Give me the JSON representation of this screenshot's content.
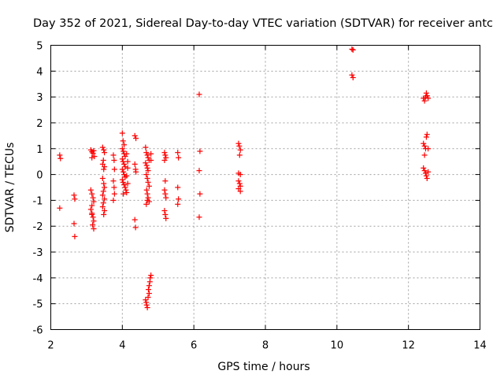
{
  "chart_data": {
    "type": "scatter",
    "title": "Day 352 of 2021, Sidereal Day-to-day VTEC variation (SDTVAR) for receiver antc",
    "xlabel": "GPS time / hours",
    "ylabel": "SDTVAR / TECUs",
    "xlim": [
      2,
      14
    ],
    "ylim": [
      -6,
      5
    ],
    "xticks": [
      "2",
      "4",
      "6",
      "8",
      "10",
      "12",
      "14"
    ],
    "yticks": [
      "-6",
      "-5",
      "-4",
      "-3",
      "-2",
      "-1",
      "0",
      "1",
      "2",
      "3",
      "4",
      "5"
    ],
    "grid": true,
    "marker": "+",
    "color": "#ff0000",
    "series": [
      {
        "name": "SDTVAR",
        "points": [
          [
            2.25,
            0.75
          ],
          [
            2.27,
            0.62
          ],
          [
            2.25,
            -1.3
          ],
          [
            2.65,
            -0.8
          ],
          [
            2.67,
            -0.95
          ],
          [
            2.65,
            -1.9
          ],
          [
            2.67,
            -2.4
          ],
          [
            3.12,
            0.95
          ],
          [
            3.15,
            0.88
          ],
          [
            3.18,
            0.82
          ],
          [
            3.2,
            0.92
          ],
          [
            3.22,
            0.7
          ],
          [
            3.15,
            0.65
          ],
          [
            3.12,
            -0.6
          ],
          [
            3.15,
            -0.75
          ],
          [
            3.18,
            -0.9
          ],
          [
            3.2,
            -1.05
          ],
          [
            3.15,
            -1.2
          ],
          [
            3.12,
            -1.35
          ],
          [
            3.15,
            -1.5
          ],
          [
            3.18,
            -1.65
          ],
          [
            3.2,
            -1.8
          ],
          [
            3.17,
            -1.95
          ],
          [
            3.2,
            -2.1
          ],
          [
            3.15,
            -1.55
          ],
          [
            3.45,
            1.05
          ],
          [
            3.48,
            0.95
          ],
          [
            3.5,
            0.85
          ],
          [
            3.47,
            0.55
          ],
          [
            3.45,
            0.4
          ],
          [
            3.5,
            0.3
          ],
          [
            3.48,
            0.2
          ],
          [
            3.45,
            -0.15
          ],
          [
            3.48,
            -0.35
          ],
          [
            3.5,
            -0.5
          ],
          [
            3.47,
            -0.65
          ],
          [
            3.45,
            -0.8
          ],
          [
            3.5,
            -0.95
          ],
          [
            3.47,
            -1.1
          ],
          [
            3.45,
            -1.25
          ],
          [
            3.5,
            -1.4
          ],
          [
            3.48,
            -1.55
          ],
          [
            3.75,
            0.75
          ],
          [
            3.77,
            0.55
          ],
          [
            3.78,
            0.2
          ],
          [
            3.75,
            -0.25
          ],
          [
            3.77,
            -0.5
          ],
          [
            3.78,
            -0.75
          ],
          [
            3.75,
            -1.0
          ],
          [
            4.0,
            1.6
          ],
          [
            4.02,
            1.3
          ],
          [
            4.05,
            1.15
          ],
          [
            4.0,
            1.0
          ],
          [
            4.03,
            0.9
          ],
          [
            4.05,
            0.8
          ],
          [
            4.08,
            0.7
          ],
          [
            4.0,
            0.6
          ],
          [
            4.02,
            0.5
          ],
          [
            4.05,
            0.4
          ],
          [
            4.08,
            0.3
          ],
          [
            4.0,
            0.2
          ],
          [
            4.03,
            0.1
          ],
          [
            4.05,
            0.0
          ],
          [
            4.08,
            -0.1
          ],
          [
            4.0,
            -0.2
          ],
          [
            4.02,
            -0.3
          ],
          [
            4.05,
            -0.4
          ],
          [
            4.08,
            -0.5
          ],
          [
            4.1,
            -0.6
          ],
          [
            4.12,
            -0.7
          ],
          [
            4.03,
            -0.75
          ],
          [
            4.12,
            0.8
          ],
          [
            4.15,
            0.5
          ],
          [
            4.15,
            0.25
          ],
          [
            4.12,
            -0.05
          ],
          [
            4.15,
            -0.35
          ],
          [
            4.35,
            1.5
          ],
          [
            4.38,
            1.4
          ],
          [
            4.35,
            0.4
          ],
          [
            4.37,
            0.2
          ],
          [
            4.38,
            0.1
          ],
          [
            4.35,
            -1.75
          ],
          [
            4.37,
            -2.05
          ],
          [
            4.65,
            1.05
          ],
          [
            4.67,
            0.85
          ],
          [
            4.7,
            0.75
          ],
          [
            4.72,
            0.65
          ],
          [
            4.75,
            0.55
          ],
          [
            4.65,
            0.45
          ],
          [
            4.68,
            0.35
          ],
          [
            4.7,
            0.25
          ],
          [
            4.72,
            0.15
          ],
          [
            4.67,
            0.0
          ],
          [
            4.7,
            -0.15
          ],
          [
            4.72,
            -0.3
          ],
          [
            4.75,
            -0.45
          ],
          [
            4.68,
            -0.6
          ],
          [
            4.7,
            -0.75
          ],
          [
            4.72,
            -0.9
          ],
          [
            4.75,
            -1.05
          ],
          [
            4.67,
            -1.15
          ],
          [
            4.7,
            -1.0
          ],
          [
            4.8,
            0.8
          ],
          [
            4.8,
            0.55
          ],
          [
            4.65,
            -4.85
          ],
          [
            4.67,
            -4.95
          ],
          [
            4.68,
            -5.05
          ],
          [
            4.7,
            -5.15
          ],
          [
            4.72,
            -4.75
          ],
          [
            4.75,
            -4.6
          ],
          [
            4.73,
            -4.45
          ],
          [
            4.75,
            -4.3
          ],
          [
            4.77,
            -4.15
          ],
          [
            4.78,
            -4.0
          ],
          [
            4.8,
            -3.9
          ],
          [
            5.18,
            0.85
          ],
          [
            5.2,
            0.75
          ],
          [
            5.22,
            0.65
          ],
          [
            5.18,
            0.55
          ],
          [
            5.2,
            -0.25
          ],
          [
            5.18,
            -0.6
          ],
          [
            5.2,
            -0.75
          ],
          [
            5.22,
            -0.9
          ],
          [
            5.18,
            -1.4
          ],
          [
            5.2,
            -1.55
          ],
          [
            5.22,
            -1.7
          ],
          [
            5.55,
            0.85
          ],
          [
            5.57,
            0.65
          ],
          [
            5.55,
            -0.5
          ],
          [
            5.57,
            -0.95
          ],
          [
            5.55,
            -1.15
          ],
          [
            6.15,
            3.1
          ],
          [
            6.17,
            0.9
          ],
          [
            6.15,
            0.15
          ],
          [
            6.17,
            -0.75
          ],
          [
            6.15,
            -1.65
          ],
          [
            7.25,
            1.2
          ],
          [
            7.27,
            1.1
          ],
          [
            7.3,
            0.95
          ],
          [
            7.28,
            0.75
          ],
          [
            7.25,
            0.05
          ],
          [
            7.3,
            0.0
          ],
          [
            7.25,
            -0.25
          ],
          [
            7.28,
            -0.35
          ],
          [
            7.3,
            -0.45
          ],
          [
            7.25,
            -0.55
          ],
          [
            7.3,
            -0.65
          ],
          [
            10.42,
            4.85
          ],
          [
            10.45,
            4.82
          ],
          [
            10.42,
            3.85
          ],
          [
            10.45,
            3.75
          ],
          [
            12.42,
            2.95
          ],
          [
            12.45,
            2.85
          ],
          [
            12.48,
            3.0
          ],
          [
            12.5,
            3.15
          ],
          [
            12.52,
            3.05
          ],
          [
            12.55,
            2.95
          ],
          [
            12.42,
            1.2
          ],
          [
            12.45,
            1.1
          ],
          [
            12.48,
            1.0
          ],
          [
            12.5,
            1.45
          ],
          [
            12.52,
            1.55
          ],
          [
            12.55,
            1.0
          ],
          [
            12.45,
            0.75
          ],
          [
            12.42,
            0.25
          ],
          [
            12.45,
            0.15
          ],
          [
            12.48,
            0.05
          ],
          [
            12.5,
            -0.05
          ],
          [
            12.52,
            -0.15
          ],
          [
            12.55,
            0.1
          ]
        ]
      }
    ]
  }
}
